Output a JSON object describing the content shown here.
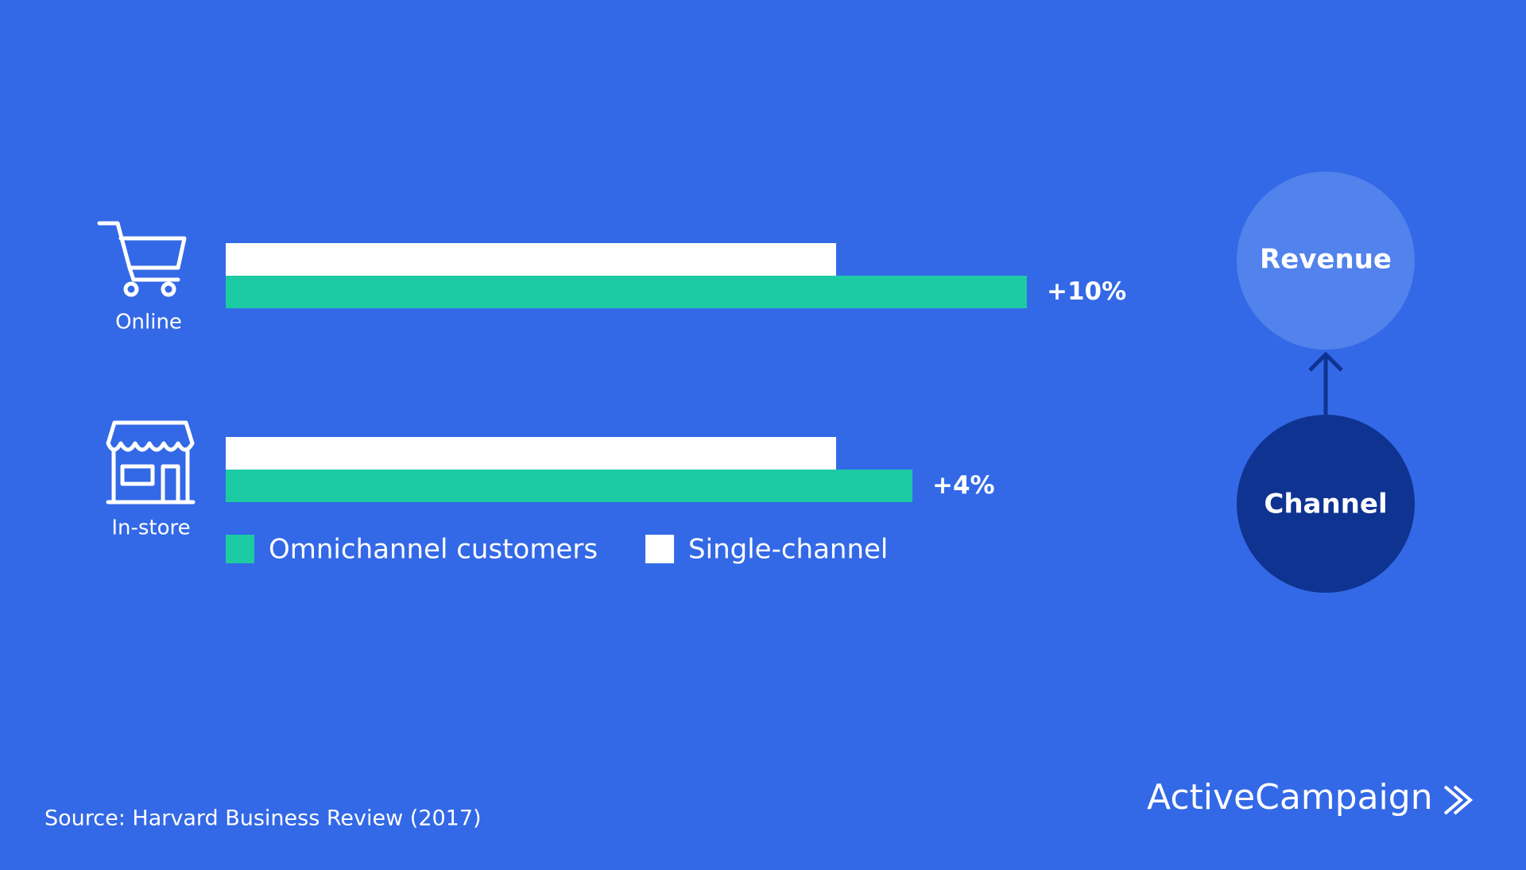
{
  "chart_data": {
    "type": "hbar",
    "categories": [
      "Online",
      "In-store"
    ],
    "series": [
      {
        "name": "Omnichannel customers",
        "color": "#1ccaa4",
        "values": [
          10,
          4
        ],
        "value_labels": [
          "+10%",
          "+4%"
        ]
      },
      {
        "name": "Single-channel",
        "color": "#ffffff",
        "values": [
          0,
          0
        ]
      }
    ],
    "xlim": [
      -32,
      20
    ],
    "annotations": [
      "Revenue",
      "Channel"
    ],
    "source": "Source: Harvard Business Review (2017)",
    "brand": "ActiveCampaign"
  }
}
